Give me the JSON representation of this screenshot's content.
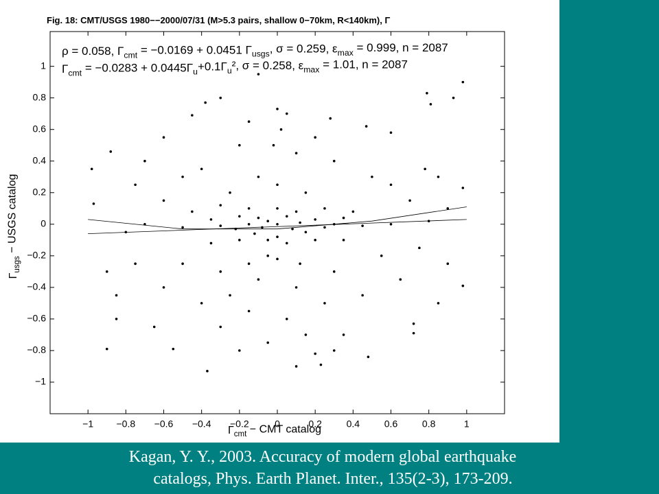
{
  "chart_data": {
    "type": "scatter",
    "title": "Fig. 18: CMT/USGS 1980−−2000/07/31 (M>5.3 pairs, shallow 0−70km, R<140km), Γ",
    "annotations": [
      [
        "ρ = 0.058,  Γ",
        "cmt",
        " = −0.0169 + 0.0451 Γ",
        "usgs",
        ",  σ = 0.259,  ε",
        "max",
        " = 0.999,  n = 2087"
      ],
      [
        "Γ",
        "cmt",
        " = −0.0283 + 0.0445Γ",
        "u",
        "+0.1Γ",
        "u",
        "², σ = 0.258, ε",
        "max",
        " = 1.01, n = 2087"
      ]
    ],
    "xlabel": [
      "Γ",
      "cmt",
      " − CMT catalog"
    ],
    "ylabel": [
      "Γ",
      "usgs",
      " − USGS catalog"
    ],
    "caption": [
      "Kagan, Y. Y., 2003. Accuracy of modern global earthquake",
      "catalogs, Phys. Earth Planet. Inter., 135(2-3), 173-209."
    ],
    "xlim": [
      -1.2,
      1.2
    ],
    "ylim": [
      -1.2,
      1.22
    ],
    "xticks": [
      {
        "value": -1,
        "label": "−1"
      },
      {
        "value": -0.8,
        "label": "−0.8"
      },
      {
        "value": -0.6,
        "label": "−0.6"
      },
      {
        "value": -0.4,
        "label": "−0.4"
      },
      {
        "value": -0.2,
        "label": "−0.2"
      },
      0,
      0.2,
      0.4,
      0.6,
      0.8,
      1
    ],
    "yticks": [
      {
        "value": -1,
        "label": "−1"
      },
      {
        "value": -0.8,
        "label": "−0.8"
      },
      {
        "value": -0.6,
        "label": "−0.6"
      },
      {
        "value": -0.4,
        "label": "−0.4"
      },
      {
        "value": -0.2,
        "label": "−0.2"
      },
      0,
      0.2,
      0.4,
      0.6,
      0.8,
      1
    ],
    "grid": false,
    "color": "#000000",
    "x": [
      -0.88,
      -0.9,
      0.93,
      0.98,
      0.79,
      0.81,
      -0.1,
      0.48,
      0.72,
      0.72,
      0.98,
      -0.98,
      -0.97,
      0.98,
      0.1,
      -0.37,
      0.23,
      -0.85,
      0.2,
      -0.65,
      -0.55,
      -0.45,
      -0.38,
      -0.3,
      0.0,
      0.05,
      0.28,
      0.47,
      0.6,
      -0.6,
      -0.7,
      0.85,
      0.9,
      -0.9,
      -0.85,
      0.9,
      0.85,
      -0.2,
      0.1,
      0.3,
      -0.4,
      -0.5,
      0.5,
      0.6,
      -0.1,
      0.0,
      0.15,
      -0.25,
      -0.6,
      0.7,
      -0.3,
      -0.15,
      0.0,
      0.1,
      0.25,
      0.4,
      -0.45,
      -0.2,
      -0.1,
      0.05,
      0.2,
      0.35,
      -0.35,
      -0.05,
      0.12,
      -0.15,
      0.0,
      0.3,
      -0.3,
      -0.08,
      0.08,
      0.25,
      -0.22,
      0.45,
      -0.5,
      0.6,
      -0.7,
      0.8,
      -0.8,
      0.15,
      -0.12,
      0.0,
      -0.05,
      0.05,
      -0.2,
      0.2,
      -0.35,
      0.35,
      -0.05,
      0.0,
      -0.15,
      0.12,
      -0.3,
      0.3,
      -0.5,
      0.55,
      -0.1,
      0.1,
      -0.25,
      0.25,
      -0.4,
      0.45,
      -0.6,
      0.65,
      -0.15,
      0.05,
      -0.3,
      0.35,
      -0.05,
      0.15,
      -0.2,
      0.3,
      -0.75,
      0.75,
      -0.75,
      0.78,
      -0.02,
      0.02,
      0.2,
      -0.15
    ],
    "values": [
      0.46,
      -0.79,
      0.8,
      0.9,
      0.83,
      0.76,
      0.95,
      -0.84,
      -0.63,
      -0.69,
      -0.39,
      0.35,
      0.13,
      0.23,
      -0.9,
      -0.93,
      -0.89,
      -0.6,
      -0.82,
      -0.65,
      -0.79,
      0.69,
      0.77,
      0.8,
      0.73,
      0.7,
      0.67,
      0.62,
      0.58,
      0.55,
      0.4,
      0.3,
      0.1,
      -0.3,
      -0.45,
      -0.25,
      -0.5,
      0.5,
      0.45,
      0.4,
      0.35,
      0.3,
      0.3,
      0.25,
      0.3,
      0.25,
      0.2,
      0.2,
      0.15,
      0.15,
      0.12,
      0.1,
      0.1,
      0.08,
      0.1,
      0.08,
      0.08,
      0.05,
      0.04,
      0.05,
      0.03,
      0.04,
      0.03,
      0.02,
      0.01,
      0.0,
      0.0,
      0.0,
      -0.01,
      -0.02,
      -0.03,
      -0.02,
      -0.03,
      -0.01,
      -0.02,
      0.0,
      0.0,
      0.02,
      -0.05,
      -0.05,
      -0.06,
      -0.08,
      -0.1,
      -0.12,
      -0.1,
      -0.1,
      -0.12,
      -0.1,
      -0.2,
      -0.22,
      -0.25,
      -0.25,
      -0.3,
      -0.3,
      -0.25,
      -0.2,
      -0.35,
      -0.4,
      -0.45,
      -0.5,
      -0.5,
      -0.45,
      -0.4,
      -0.35,
      -0.55,
      -0.6,
      -0.65,
      -0.7,
      -0.75,
      -0.7,
      -0.8,
      -0.8,
      -0.25,
      -0.15,
      0.25,
      0.35,
      0.5,
      0.6,
      0.55,
      0.65
    ],
    "lines": [
      {
        "x": [
          -1,
          1
        ],
        "values": [
          -0.06,
          0.03
        ]
      },
      {
        "x": [
          -1,
          -0.5,
          0,
          0.5,
          1
        ],
        "values": [
          0.03,
          -0.03,
          -0.03,
          0.02,
          0.11
        ]
      }
    ]
  }
}
